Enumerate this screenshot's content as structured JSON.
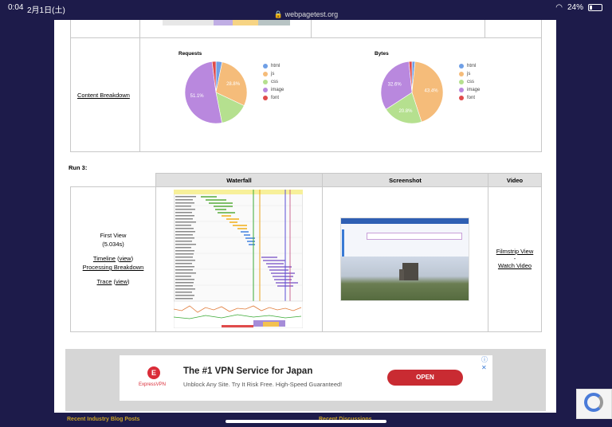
{
  "status": {
    "time": "0:04",
    "date": "2月1日(土)",
    "url": "webpagetest.org",
    "battery": "24%"
  },
  "content_breakdown": {
    "link": "Content Breakdown",
    "requests": {
      "title": "Requests",
      "slices": [
        {
          "label": "html",
          "value": 3.2,
          "color": "#6f9fe6"
        },
        {
          "label": "js",
          "value": 28.8,
          "color": "#f5bc7a"
        },
        {
          "label": "css",
          "value": 14.9,
          "color": "#b5e08f"
        },
        {
          "label": "image",
          "value": 51.1,
          "color": "#b988de"
        },
        {
          "label": "font",
          "value": 2.0,
          "color": "#e04b4b"
        }
      ],
      "shown_labels": [
        "28.8%",
        "51.1%"
      ]
    },
    "bytes": {
      "title": "Bytes",
      "slices": [
        {
          "label": "html",
          "value": 1.6,
          "color": "#6f9fe6"
        },
        {
          "label": "js",
          "value": 43.4,
          "color": "#f5bc7a"
        },
        {
          "label": "css",
          "value": 20.8,
          "color": "#b5e08f"
        },
        {
          "label": "image",
          "value": 32.6,
          "color": "#b988de"
        },
        {
          "label": "font",
          "value": 1.6,
          "color": "#e04b4b"
        }
      ],
      "shown_labels": [
        "43.4%",
        "20.8%",
        "32.6%"
      ]
    },
    "legend": [
      "html",
      "js",
      "css",
      "image",
      "font"
    ]
  },
  "run3": {
    "heading": "Run 3:",
    "headers": {
      "waterfall": "Waterfall",
      "screenshot": "Screenshot",
      "video": "Video"
    },
    "first_view": "First View",
    "time": "(5.034s)",
    "timeline": "Timeline",
    "view": "view",
    "processing": "Processing Breakdown",
    "trace": "Trace",
    "filmstrip": "Filmstrip View",
    "dash": "-",
    "watch": "Watch Video"
  },
  "ad": {
    "title": "The #1 VPN Service for Japan",
    "sub": "Unblock Any Site. Try It Risk Free. High-Speed Guaranteed!",
    "brand": "ExpressVPN",
    "cta": "OPEN"
  },
  "footer": {
    "left": "Recent Industry Blog Posts",
    "right": "Recent Discussions"
  }
}
